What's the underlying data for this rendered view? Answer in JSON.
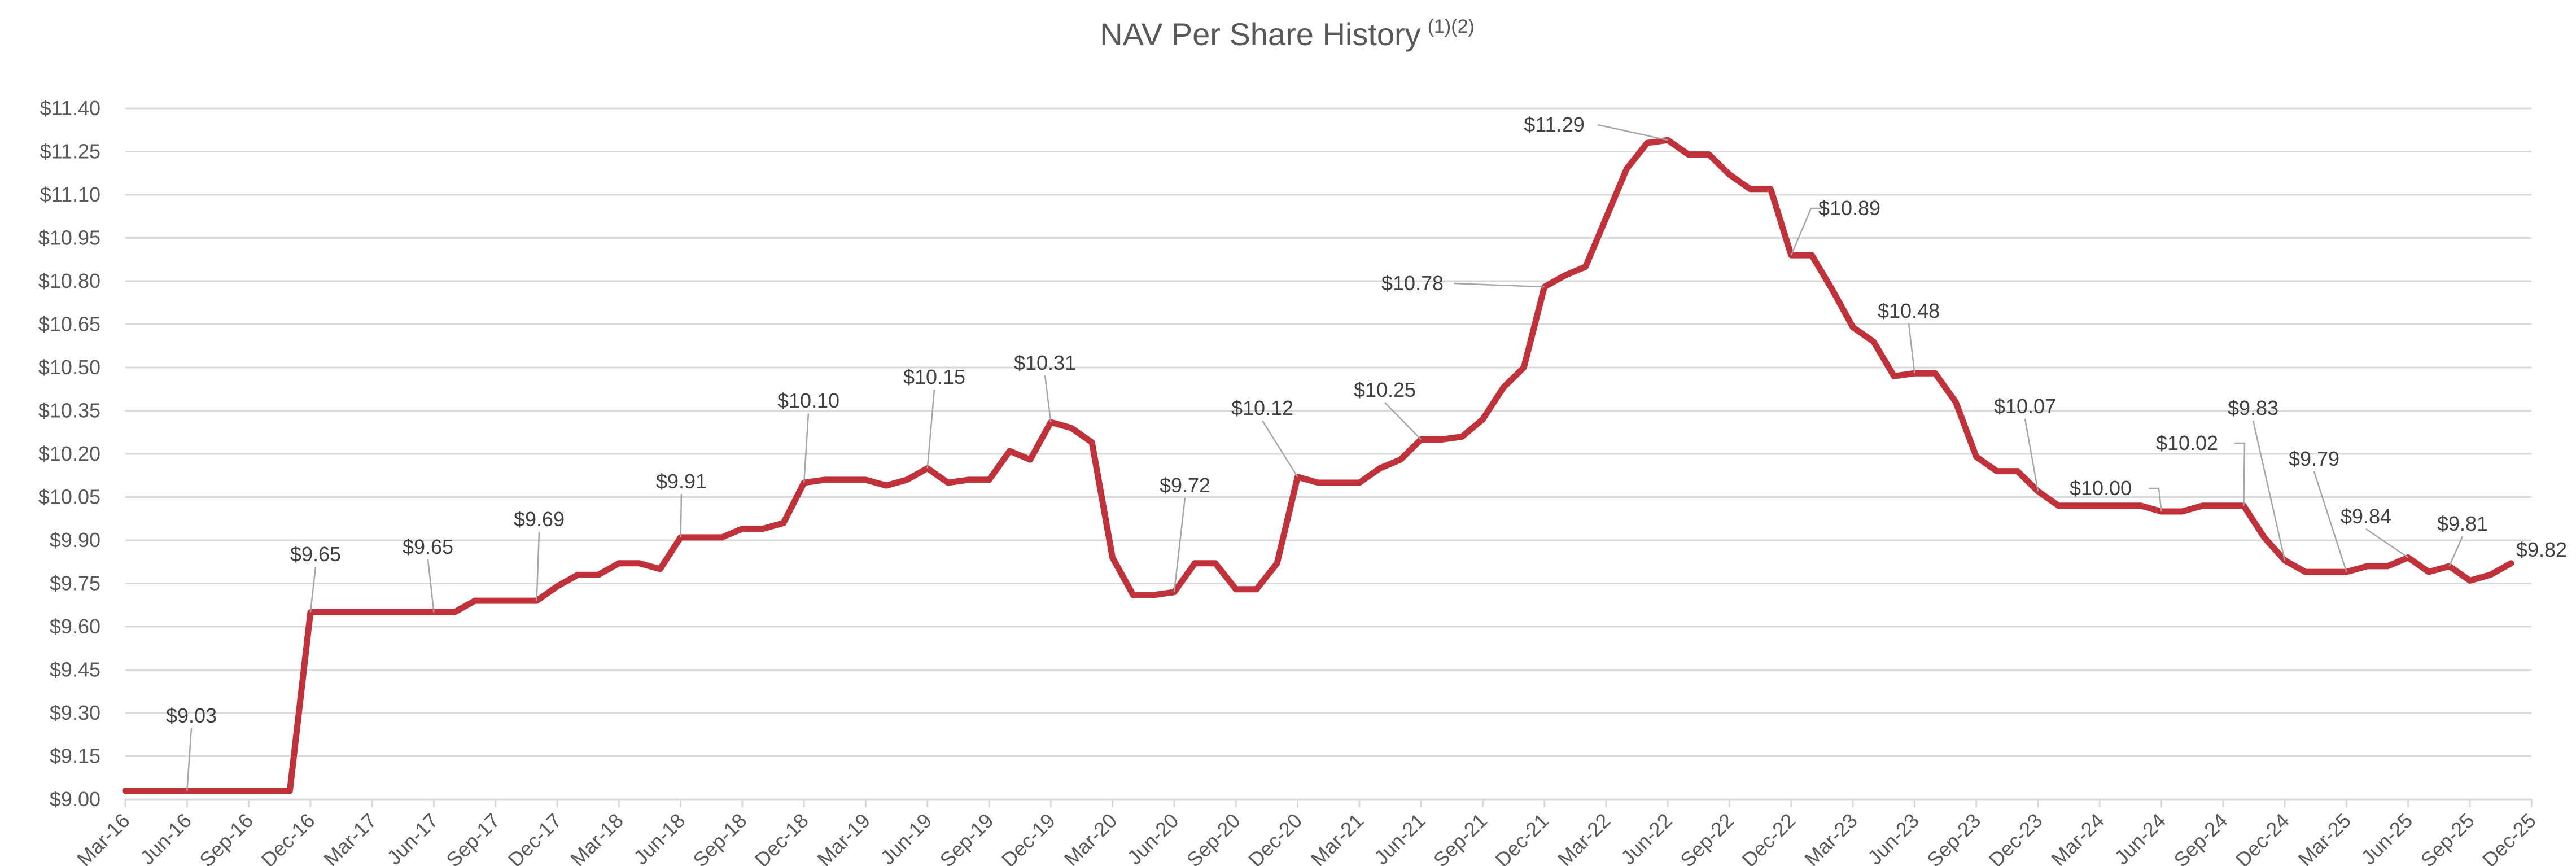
{
  "chart_data": {
    "type": "line",
    "title": "NAV Per Share History",
    "title_superscript": "(1)(2)",
    "xlabel": "",
    "ylabel": "",
    "ylim": [
      9.0,
      11.4
    ],
    "y_ticks": [
      "$9.00",
      "$9.15",
      "$9.30",
      "$9.45",
      "$9.60",
      "$9.75",
      "$9.90",
      "$10.05",
      "$10.20",
      "$10.35",
      "$10.50",
      "$10.65",
      "$10.80",
      "$10.95",
      "$11.10",
      "$11.25",
      "$11.40"
    ],
    "x_ticks": [
      "Mar-16",
      "Jun-16",
      "Sep-16",
      "Dec-16",
      "Mar-17",
      "Jun-17",
      "Sep-17",
      "Dec-17",
      "Mar-18",
      "Jun-18",
      "Sep-18",
      "Dec-18",
      "Mar-19",
      "Jun-19",
      "Sep-19",
      "Dec-19",
      "Mar-20",
      "Jun-20",
      "Sep-20",
      "Dec-20",
      "Mar-21",
      "Jun-21",
      "Sep-21",
      "Dec-21",
      "Mar-22",
      "Jun-22",
      "Sep-22",
      "Dec-22",
      "Mar-23",
      "Jun-23",
      "Sep-23",
      "Dec-23",
      "Mar-24",
      "Jun-24",
      "Sep-24",
      "Dec-24",
      "Mar-25",
      "Jun-25",
      "Sep-25",
      "Dec-25"
    ],
    "grid": true,
    "legend": "none",
    "line_color": "#C1313A",
    "x": [
      "Mar-16",
      "Apr-16",
      "May-16",
      "Jun-16",
      "Jul-16",
      "Aug-16",
      "Sep-16",
      "Oct-16",
      "Nov-16",
      "Dec-16",
      "Jan-17",
      "Feb-17",
      "Mar-17",
      "Apr-17",
      "May-17",
      "Jun-17",
      "Jul-17",
      "Aug-17",
      "Sep-17",
      "Oct-17",
      "Nov-17",
      "Dec-17",
      "Jan-18",
      "Feb-18",
      "Mar-18",
      "Apr-18",
      "May-18",
      "Jun-18",
      "Jul-18",
      "Aug-18",
      "Sep-18",
      "Oct-18",
      "Nov-18",
      "Dec-18",
      "Jan-19",
      "Feb-19",
      "Mar-19",
      "Apr-19",
      "May-19",
      "Jun-19",
      "Jul-19",
      "Aug-19",
      "Sep-19",
      "Oct-19",
      "Nov-19",
      "Dec-19",
      "Jan-20",
      "Feb-20",
      "Mar-20",
      "Apr-20",
      "May-20",
      "Jun-20",
      "Jul-20",
      "Aug-20",
      "Sep-20",
      "Oct-20",
      "Nov-20",
      "Dec-20",
      "Jan-21",
      "Feb-21",
      "Mar-21",
      "Apr-21",
      "May-21",
      "Jun-21",
      "Jul-21",
      "Aug-21",
      "Sep-21",
      "Oct-21",
      "Nov-21",
      "Dec-21",
      "Jan-22",
      "Feb-22",
      "Mar-22",
      "Apr-22",
      "May-22",
      "Jun-22",
      "Jul-22",
      "Aug-22",
      "Sep-22",
      "Oct-22",
      "Nov-22",
      "Dec-22",
      "Jan-23",
      "Feb-23",
      "Mar-23",
      "Apr-23",
      "May-23",
      "Jun-23",
      "Jul-23",
      "Aug-23",
      "Sep-23",
      "Oct-23",
      "Nov-23",
      "Dec-23",
      "Jan-24",
      "Feb-24",
      "Mar-24",
      "Apr-24",
      "May-24",
      "Jun-24",
      "Jul-24",
      "Aug-24",
      "Sep-24",
      "Oct-24",
      "Nov-24",
      "Dec-24",
      "Jan-25",
      "Feb-25",
      "Mar-25",
      "Apr-25",
      "May-25",
      "Jun-25",
      "Jul-25",
      "Aug-25",
      "Sep-25",
      "Oct-25",
      "Nov-25"
    ],
    "y": [
      9.03,
      9.03,
      9.03,
      9.03,
      9.03,
      9.03,
      9.03,
      9.03,
      9.03,
      9.65,
      9.65,
      9.65,
      9.65,
      9.65,
      9.65,
      9.65,
      9.65,
      9.69,
      9.69,
      9.69,
      9.69,
      9.74,
      9.78,
      9.78,
      9.82,
      9.82,
      9.8,
      9.91,
      9.91,
      9.91,
      9.94,
      9.94,
      9.96,
      10.1,
      10.11,
      10.11,
      10.11,
      10.09,
      10.11,
      10.15,
      10.1,
      10.11,
      10.11,
      10.21,
      10.18,
      10.31,
      10.29,
      10.24,
      9.84,
      9.71,
      9.71,
      9.72,
      9.82,
      9.82,
      9.73,
      9.73,
      9.82,
      10.12,
      10.1,
      10.1,
      10.1,
      10.15,
      10.18,
      10.25,
      10.25,
      10.26,
      10.32,
      10.43,
      10.5,
      10.78,
      10.82,
      10.85,
      11.02,
      11.19,
      11.28,
      11.29,
      11.24,
      11.24,
      11.17,
      11.12,
      11.12,
      10.89,
      10.89,
      10.77,
      10.64,
      10.59,
      10.47,
      10.48,
      10.48,
      10.38,
      10.19,
      10.14,
      10.14,
      10.07,
      10.02,
      10.02,
      10.02,
      10.02,
      10.02,
      10.0,
      10.0,
      10.02,
      10.02,
      10.02,
      9.91,
      9.83,
      9.79,
      9.79,
      9.79,
      9.81,
      9.81,
      9.84,
      9.79,
      9.81,
      9.76,
      9.78,
      9.82
    ],
    "data_labels": [
      {
        "x": "Jun-16",
        "text": "$9.03"
      },
      {
        "x": "Dec-16",
        "text": "$9.65"
      },
      {
        "x": "Jun-17",
        "text": "$9.65"
      },
      {
        "x": "Nov-17",
        "text": "$9.69"
      },
      {
        "x": "Jun-18",
        "text": "$9.91"
      },
      {
        "x": "Dec-18",
        "text": "$10.10"
      },
      {
        "x": "Jun-19",
        "text": "$10.15"
      },
      {
        "x": "Dec-19",
        "text": "$10.31"
      },
      {
        "x": "Jun-20",
        "text": "$9.72"
      },
      {
        "x": "Dec-20",
        "text": "$10.12"
      },
      {
        "x": "Jun-21",
        "text": "$10.25"
      },
      {
        "x": "Dec-21",
        "text": "$10.78"
      },
      {
        "x": "Jun-22",
        "text": "$11.29"
      },
      {
        "x": "Dec-22",
        "text": "$10.89"
      },
      {
        "x": "Jun-23",
        "text": "$10.48"
      },
      {
        "x": "Dec-23",
        "text": "$10.07"
      },
      {
        "x": "Jun-24",
        "text": "$10.00"
      },
      {
        "x": "Oct-24",
        "text": "$10.02"
      },
      {
        "x": "Dec-24",
        "text": "$9.83"
      },
      {
        "x": "Mar-25",
        "text": "$9.79"
      },
      {
        "x": "Jun-25",
        "text": "$9.84"
      },
      {
        "x": "Aug-25",
        "text": "$9.81"
      },
      {
        "x": "Nov-25",
        "text": "$9.82"
      }
    ]
  }
}
